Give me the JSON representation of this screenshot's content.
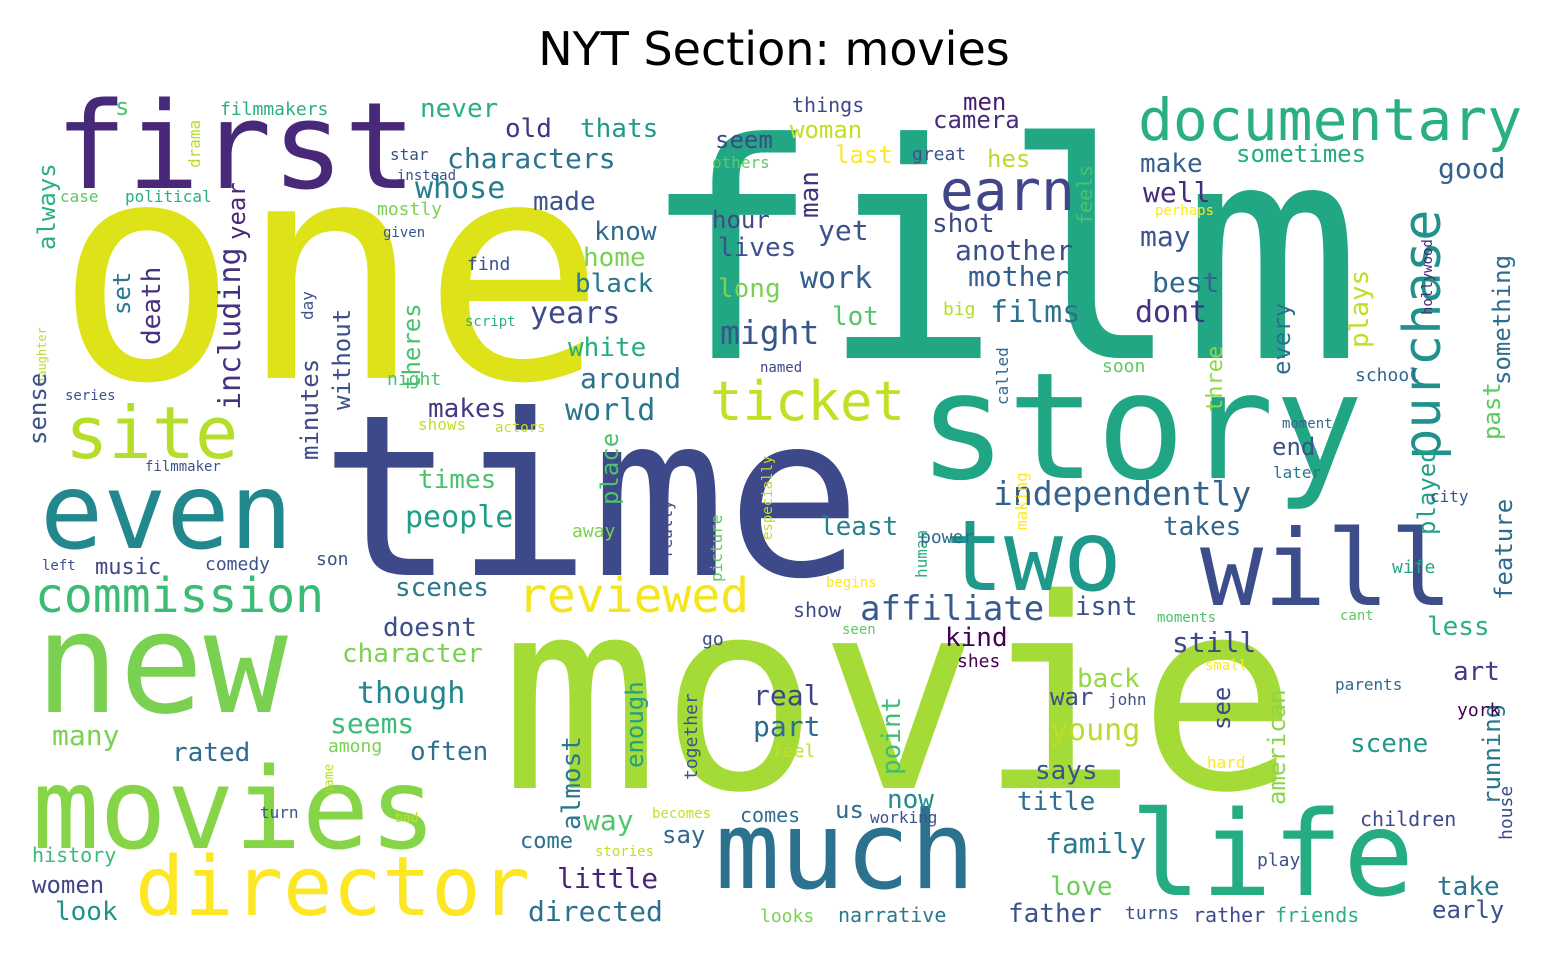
{
  "chart_data": {
    "type": "wordcloud",
    "title": "NYT Section: movies",
    "words": [
      {
        "text": "film",
        "color": "#22a785",
        "weight": 240
      },
      {
        "text": "one",
        "color": "#dde318",
        "weight": 230
      },
      {
        "text": "movie",
        "color": "#a5db36",
        "weight": 230
      },
      {
        "text": "time",
        "color": "#3e4989",
        "weight": 225
      },
      {
        "text": "story",
        "color": "#21a685",
        "weight": 150
      },
      {
        "text": "new",
        "color": "#7ad151",
        "weight": 130
      },
      {
        "text": "first",
        "color": "#482878",
        "weight": 115
      },
      {
        "text": "even",
        "color": "#23888e",
        "weight": 110
      },
      {
        "text": "will",
        "color": "#3d4d8a",
        "weight": 110
      },
      {
        "text": "two",
        "color": "#1f9a8a",
        "weight": 105
      },
      {
        "text": "much",
        "color": "#2c728e",
        "weight": 100
      },
      {
        "text": "movies",
        "color": "#86d549",
        "weight": 100
      },
      {
        "text": "life",
        "color": "#25ac82",
        "weight": 100
      },
      {
        "text": "director",
        "color": "#fde725",
        "weight": 80
      },
      {
        "text": "site",
        "color": "#b5de2b",
        "weight": 70
      },
      {
        "text": "documentary",
        "color": "#2ab07f",
        "weight": 58
      },
      {
        "text": "earn",
        "color": "#404688",
        "weight": 55
      },
      {
        "text": "purchase",
        "color": "#21918c",
        "weight": 52
      },
      {
        "text": "ticket",
        "color": "#c2df23",
        "weight": 52
      },
      {
        "text": "commission",
        "color": "#3bbb75",
        "weight": 48
      },
      {
        "text": "reviewed",
        "color": "#f4e61e",
        "weight": 46
      },
      {
        "text": "affiliate",
        "color": "#365c8d",
        "weight": 34
      },
      {
        "text": "independently",
        "color": "#33638d",
        "weight": 34
      },
      {
        "text": "including",
        "color": "#46327e",
        "weight": 30
      },
      {
        "text": "might",
        "color": "#39568c",
        "weight": 32
      },
      {
        "text": "characters",
        "color": "#2c738e",
        "weight": 28
      },
      {
        "text": "whose",
        "color": "#287d8e",
        "weight": 30
      },
      {
        "text": "people",
        "color": "#1f9e89",
        "weight": 30
      },
      {
        "text": "world",
        "color": "#2a768e",
        "weight": 30
      },
      {
        "text": "around",
        "color": "#2d718e",
        "weight": 28
      },
      {
        "text": "white",
        "color": "#27ad81",
        "weight": 26
      },
      {
        "text": "years",
        "color": "#3e4a89",
        "weight": 30
      },
      {
        "text": "work",
        "color": "#355f8d",
        "weight": 30
      },
      {
        "text": "films",
        "color": "#2c728e",
        "weight": 30
      },
      {
        "text": "mother",
        "color": "#355e8d",
        "weight": 28
      },
      {
        "text": "another",
        "color": "#3c4f8a",
        "weight": 28
      },
      {
        "text": "dont",
        "color": "#46337f",
        "weight": 30
      },
      {
        "text": "best",
        "color": "#31668e",
        "weight": 28
      },
      {
        "text": "may",
        "color": "#3a548c",
        "weight": 28
      },
      {
        "text": "well",
        "color": "#472d7b",
        "weight": 28
      },
      {
        "text": "make",
        "color": "#355f8d",
        "weight": 26
      },
      {
        "text": "good",
        "color": "#33628d",
        "weight": 28
      },
      {
        "text": "sometimes",
        "color": "#25ab82",
        "weight": 24
      },
      {
        "text": "something",
        "color": "#2e6e8e",
        "weight": 24
      },
      {
        "text": "plays",
        "color": "#bddf26",
        "weight": 26
      },
      {
        "text": "past",
        "color": "#5ec962",
        "weight": 24
      },
      {
        "text": "every",
        "color": "#2d708e",
        "weight": 24
      },
      {
        "text": "three",
        "color": "#8fd744",
        "weight": 22
      },
      {
        "text": "feature",
        "color": "#2f6b8e",
        "weight": 24
      },
      {
        "text": "played",
        "color": "#1fa188",
        "weight": 24
      },
      {
        "text": "takes",
        "color": "#31668e",
        "weight": 26
      },
      {
        "text": "end",
        "color": "#3b528b",
        "weight": 24
      },
      {
        "text": "least",
        "color": "#26818e",
        "weight": 26
      },
      {
        "text": "times",
        "color": "#4ac16d",
        "weight": 26
      },
      {
        "text": "makes",
        "color": "#443983",
        "weight": 26
      },
      {
        "text": "place",
        "color": "#4cc26c",
        "weight": 24
      },
      {
        "text": "scenes",
        "color": "#2a788e",
        "weight": 26
      },
      {
        "text": "music",
        "color": "#3f4788",
        "weight": 24
      },
      {
        "text": "doesnt",
        "color": "#3d4e8a",
        "weight": 26
      },
      {
        "text": "character",
        "color": "#7ad151",
        "weight": 26
      },
      {
        "text": "though",
        "color": "#24868e",
        "weight": 30
      },
      {
        "text": "seems",
        "color": "#3bbb75",
        "weight": 28
      },
      {
        "text": "rated",
        "color": "#2f6c8e",
        "weight": 26
      },
      {
        "text": "often",
        "color": "#2c728e",
        "weight": 26
      },
      {
        "text": "many",
        "color": "#7ad151",
        "weight": 28
      },
      {
        "text": "women",
        "color": "#404688",
        "weight": 26
      },
      {
        "text": "look",
        "color": "#20928c",
        "weight": 26
      },
      {
        "text": "history",
        "color": "#3bbb75",
        "weight": 20
      },
      {
        "text": "little",
        "color": "#482677",
        "weight": 28
      },
      {
        "text": "directed",
        "color": "#2c728e",
        "weight": 28
      },
      {
        "text": "come",
        "color": "#2d708e",
        "weight": 22
      },
      {
        "text": "almost",
        "color": "#2a788e",
        "weight": 26
      },
      {
        "text": "way",
        "color": "#52c569",
        "weight": 28
      },
      {
        "text": "say",
        "color": "#31688e",
        "weight": 24
      },
      {
        "text": "enough",
        "color": "#1fa088",
        "weight": 24
      },
      {
        "text": "part",
        "color": "#2e6d8e",
        "weight": 28
      },
      {
        "text": "real",
        "color": "#414487",
        "weight": 28
      },
      {
        "text": "point",
        "color": "#40bd72",
        "weight": 26
      },
      {
        "text": "now",
        "color": "#238a8d",
        "weight": 26
      },
      {
        "text": "us",
        "color": "#306a8e",
        "weight": 24
      },
      {
        "text": "comes",
        "color": "#2e6f8e",
        "weight": 20
      },
      {
        "text": "says",
        "color": "#39568c",
        "weight": 26
      },
      {
        "text": "title",
        "color": "#2e6d8e",
        "weight": 26
      },
      {
        "text": "family",
        "color": "#2a788e",
        "weight": 28
      },
      {
        "text": "love",
        "color": "#6ccd5a",
        "weight": 26
      },
      {
        "text": "father",
        "color": "#3b518b",
        "weight": 26
      },
      {
        "text": "young",
        "color": "#bade28",
        "weight": 30
      },
      {
        "text": "war",
        "color": "#3e4c8a",
        "weight": 24
      },
      {
        "text": "back",
        "color": "#95d840",
        "weight": 26
      },
      {
        "text": "still",
        "color": "#3e4989",
        "weight": 28
      },
      {
        "text": "see",
        "color": "#3e4989",
        "weight": 24
      },
      {
        "text": "american",
        "color": "#8bd646",
        "weight": 24
      },
      {
        "text": "scene",
        "color": "#1f998a",
        "weight": 26
      },
      {
        "text": "running",
        "color": "#2a788e",
        "weight": 24
      },
      {
        "text": "art",
        "color": "#443a83",
        "weight": 26
      },
      {
        "text": "less",
        "color": "#2ab07f",
        "weight": 26
      },
      {
        "text": "take",
        "color": "#2c738e",
        "weight": 26
      },
      {
        "text": "early",
        "color": "#3b528b",
        "weight": 24
      },
      {
        "text": "children",
        "color": "#3e4a89",
        "weight": 20
      },
      {
        "text": "house",
        "color": "#3e4a89",
        "weight": 18
      },
      {
        "text": "york",
        "color": "#440154",
        "weight": 18
      },
      {
        "text": "kind",
        "color": "#440154",
        "weight": 26
      },
      {
        "text": "shes",
        "color": "#440154",
        "weight": 18
      },
      {
        "text": "isnt",
        "color": "#3b528b",
        "weight": 26
      },
      {
        "text": "show",
        "color": "#3e4989",
        "weight": 20
      },
      {
        "text": "lot",
        "color": "#52c569",
        "weight": 26
      },
      {
        "text": "long",
        "color": "#7ad151",
        "weight": 26
      },
      {
        "text": "lives",
        "color": "#3b528b",
        "weight": 26
      },
      {
        "text": "hour",
        "color": "#3e4a89",
        "weight": 24
      },
      {
        "text": "yet",
        "color": "#3b528b",
        "weight": 28
      },
      {
        "text": "shot",
        "color": "#3e4989",
        "weight": 26
      },
      {
        "text": "man",
        "color": "#46327e",
        "weight": 26
      },
      {
        "text": "woman",
        "color": "#c2df23",
        "weight": 24
      },
      {
        "text": "seem",
        "color": "#3e4989",
        "weight": 24
      },
      {
        "text": "last",
        "color": "#fde725",
        "weight": 24
      },
      {
        "text": "hes",
        "color": "#b5de2b",
        "weight": 24
      },
      {
        "text": "great",
        "color": "#3b528b",
        "weight": 18
      },
      {
        "text": "camera",
        "color": "#472d7b",
        "weight": 24
      },
      {
        "text": "men",
        "color": "#481a6c",
        "weight": 24
      },
      {
        "text": "things",
        "color": "#3e4989",
        "weight": 20
      },
      {
        "text": "feels",
        "color": "#4ac16d",
        "weight": 20
      },
      {
        "text": "others",
        "color": "#5ec962",
        "weight": 16
      },
      {
        "text": "perhaps",
        "color": "#fde725",
        "weight": 14
      },
      {
        "text": "big",
        "color": "#b5de2b",
        "weight": 18
      },
      {
        "text": "hollywood",
        "color": "#482878",
        "weight": 14
      },
      {
        "text": "school",
        "color": "#31688e",
        "weight": 18
      },
      {
        "text": "moment",
        "color": "#31688e",
        "weight": 14
      },
      {
        "text": "later",
        "color": "#2a788e",
        "weight": 16
      },
      {
        "text": "city",
        "color": "#3b528b",
        "weight": 16
      },
      {
        "text": "wife",
        "color": "#22a785",
        "weight": 18
      },
      {
        "text": "moments",
        "color": "#4ac16d",
        "weight": 14
      },
      {
        "text": "cant",
        "color": "#5ec962",
        "weight": 14
      },
      {
        "text": "small",
        "color": "#fde725",
        "weight": 14
      },
      {
        "text": "parents",
        "color": "#31688e",
        "weight": 16
      },
      {
        "text": "john",
        "color": "#3b528b",
        "weight": 16
      },
      {
        "text": "hard",
        "color": "#fde725",
        "weight": 16
      },
      {
        "text": "play",
        "color": "#3b528b",
        "weight": 18
      },
      {
        "text": "turns",
        "color": "#3b528b",
        "weight": 18
      },
      {
        "text": "rather",
        "color": "#3e4989",
        "weight": 20
      },
      {
        "text": "friends",
        "color": "#2ab07f",
        "weight": 20
      },
      {
        "text": "narrative",
        "color": "#2a788e",
        "weight": 20
      },
      {
        "text": "looks",
        "color": "#7ad151",
        "weight": 18
      },
      {
        "text": "working",
        "color": "#3b528b",
        "weight": 16
      },
      {
        "text": "becomes",
        "color": "#c2df23",
        "weight": 14
      },
      {
        "text": "stories",
        "color": "#c2df23",
        "weight": 14
      },
      {
        "text": "feel",
        "color": "#c2df23",
        "weight": 18
      },
      {
        "text": "together",
        "color": "#3b528b",
        "weight": 18
      },
      {
        "text": "among",
        "color": "#7ad151",
        "weight": 18
      },
      {
        "text": "name",
        "color": "#b5de2b",
        "weight": 13
      },
      {
        "text": "bad",
        "color": "#c2df23",
        "weight": 13
      },
      {
        "text": "turn",
        "color": "#3b528b",
        "weight": 16
      },
      {
        "text": "go",
        "color": "#3e4989",
        "weight": 18
      },
      {
        "text": "seen",
        "color": "#5ec962",
        "weight": 14
      },
      {
        "text": "begins",
        "color": "#fde725",
        "weight": 14
      },
      {
        "text": "human",
        "color": "#2ab07f",
        "weight": 16
      },
      {
        "text": "power",
        "color": "#31688e",
        "weight": 18
      },
      {
        "text": "making",
        "color": "#fde725",
        "weight": 16
      },
      {
        "text": "especially",
        "color": "#c2df23",
        "weight": 14
      },
      {
        "text": "picture",
        "color": "#5ec962",
        "weight": 16
      },
      {
        "text": "really",
        "color": "#3e4989",
        "weight": 16
      },
      {
        "text": "away",
        "color": "#7ad151",
        "weight": 18
      },
      {
        "text": "called",
        "color": "#31688e",
        "weight": 16
      },
      {
        "text": "soon",
        "color": "#5ec962",
        "weight": 18
      },
      {
        "text": "named",
        "color": "#3e4989",
        "weight": 14
      },
      {
        "text": "son",
        "color": "#3b528b",
        "weight": 18
      },
      {
        "text": "comedy",
        "color": "#3b528b",
        "weight": 18
      },
      {
        "text": "left",
        "color": "#3b528b",
        "weight": 14
      },
      {
        "text": "filmmaker",
        "color": "#3b528b",
        "weight": 14
      },
      {
        "text": "series",
        "color": "#3b528b",
        "weight": 14
      },
      {
        "text": "daughter",
        "color": "#b5de2b",
        "weight": 12
      },
      {
        "text": "sense",
        "color": "#3b528b",
        "weight": 24
      },
      {
        "text": "death",
        "color": "#46327e",
        "weight": 26
      },
      {
        "text": "set",
        "color": "#2a788e",
        "weight": 24
      },
      {
        "text": "always",
        "color": "#2ab07f",
        "weight": 24
      },
      {
        "text": "year",
        "color": "#482878",
        "weight": 24
      },
      {
        "text": "case",
        "color": "#5ec962",
        "weight": 16
      },
      {
        "text": "political",
        "color": "#2ab07f",
        "weight": 16
      },
      {
        "text": "drama",
        "color": "#b5de2b",
        "weight": 16
      },
      {
        "text": "filmmakers",
        "color": "#2ab07f",
        "weight": 18
      },
      {
        "text": "s",
        "color": "#4ac16d",
        "weight": 24
      },
      {
        "text": "never",
        "color": "#2ab07f",
        "weight": 26
      },
      {
        "text": "old",
        "color": "#46337f",
        "weight": 26
      },
      {
        "text": "thats",
        "color": "#1f9a8a",
        "weight": 26
      },
      {
        "text": "star",
        "color": "#3b528b",
        "weight": 16
      },
      {
        "text": "instead",
        "color": "#3b528b",
        "weight": 14
      },
      {
        "text": "mostly",
        "color": "#7ad151",
        "weight": 18
      },
      {
        "text": "given",
        "color": "#3b528b",
        "weight": 14
      },
      {
        "text": "made",
        "color": "#3b528b",
        "weight": 26
      },
      {
        "text": "know",
        "color": "#31688e",
        "weight": 26
      },
      {
        "text": "home",
        "color": "#7ad151",
        "weight": 26
      },
      {
        "text": "black",
        "color": "#2a788e",
        "weight": 26
      },
      {
        "text": "find",
        "color": "#3b528b",
        "weight": 18
      },
      {
        "text": "script",
        "color": "#2ab07f",
        "weight": 14
      },
      {
        "text": "theres",
        "color": "#4ac16d",
        "weight": 24
      },
      {
        "text": "without",
        "color": "#3b528b",
        "weight": 24
      },
      {
        "text": "minutes",
        "color": "#3e4989",
        "weight": 24
      },
      {
        "text": "day",
        "color": "#3b528b",
        "weight": 16
      },
      {
        "text": "night",
        "color": "#4ac16d",
        "weight": 18
      },
      {
        "text": "shows",
        "color": "#c2df23",
        "weight": 16
      },
      {
        "text": "actors",
        "color": "#c2df23",
        "weight": 14
      }
    ]
  }
}
